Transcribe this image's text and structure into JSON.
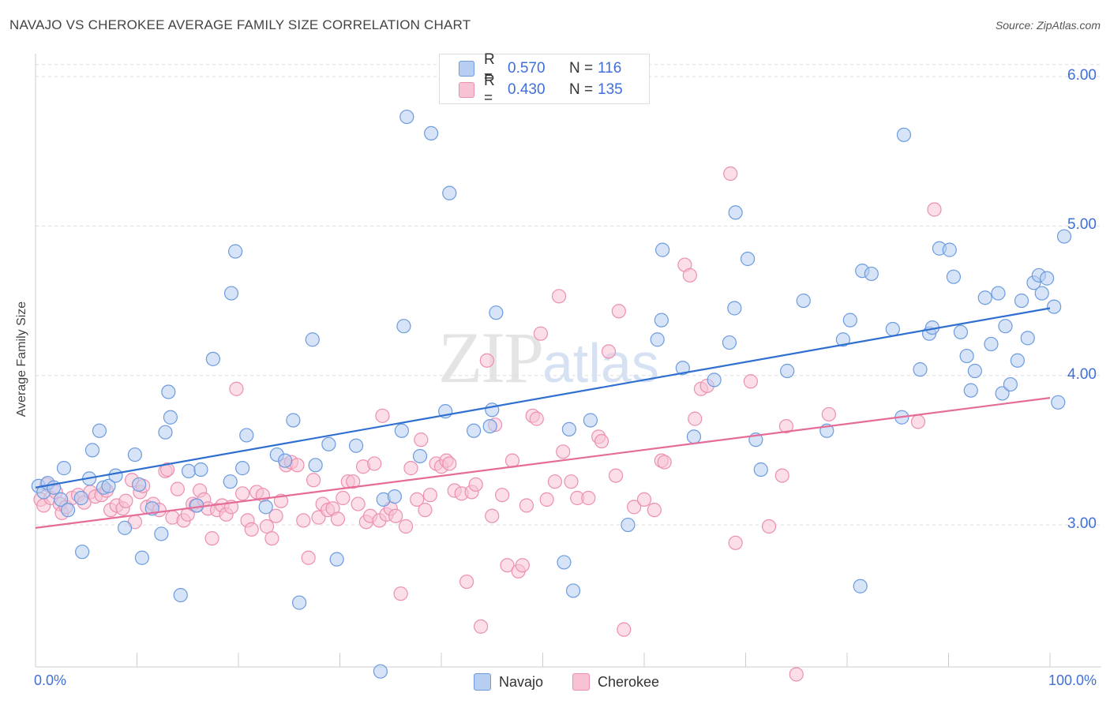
{
  "header": {
    "title": "NAVAJO VS CHEROKEE AVERAGE FAMILY SIZE CORRELATION CHART",
    "source": "Source: ZipAtlas.com"
  },
  "watermark": {
    "zip": "ZIP",
    "atlas": "atlas"
  },
  "colors": {
    "navajo_fill": "#b7cdf1",
    "navajo_stroke": "#6c9be0",
    "navajo_line": "#2f6fd0",
    "cherokee_fill": "#f7c3d4",
    "cherokee_stroke": "#ec8fb0",
    "cherokee_line": "#e56b98",
    "tick_text": "#3f6fd8",
    "grid": "#dddddd"
  },
  "legend_top": {
    "rows": [
      {
        "r_label": "R =",
        "r_value": "0.570",
        "n_label": "N =",
        "n_value": "116"
      },
      {
        "r_label": "R =",
        "r_value": "0.430",
        "n_label": "N =",
        "n_value": "135"
      }
    ]
  },
  "chart_data": {
    "type": "scatter",
    "title": "NAVAJO VS CHEROKEE AVERAGE FAMILY SIZE CORRELATION CHART",
    "xlabel": "",
    "ylabel": "Average Family Size",
    "xlim": [
      0,
      100
    ],
    "ylim": [
      2.05,
      6.1
    ],
    "x_tick_labels": [
      "0.0%",
      "100.0%"
    ],
    "y_ticks": [
      3.0,
      4.0,
      5.0,
      6.0
    ],
    "y_tick_labels": [
      "3.00",
      "4.00",
      "5.00",
      "6.00"
    ],
    "grid": true,
    "legend_position": "top-center",
    "series": [
      {
        "name": "Navajo",
        "R": 0.57,
        "N": 116,
        "trend": {
          "x": [
            0,
            100
          ],
          "y": [
            3.25,
            4.45
          ]
        },
        "points": [
          [
            0.3,
            3.26
          ],
          [
            0.8,
            3.22
          ],
          [
            1.2,
            3.28
          ],
          [
            1.8,
            3.25
          ],
          [
            2.5,
            3.17
          ],
          [
            2.8,
            3.38
          ],
          [
            3.2,
            3.1
          ],
          [
            4.5,
            3.18
          ],
          [
            4.6,
            2.82
          ],
          [
            5.3,
            3.31
          ],
          [
            5.6,
            3.5
          ],
          [
            6.3,
            3.63
          ],
          [
            6.7,
            3.25
          ],
          [
            7.2,
            3.26
          ],
          [
            7.9,
            3.33
          ],
          [
            8.8,
            2.98
          ],
          [
            9.8,
            3.47
          ],
          [
            10.2,
            3.27
          ],
          [
            10.5,
            2.78
          ],
          [
            11.5,
            3.11
          ],
          [
            12.4,
            2.94
          ],
          [
            12.8,
            3.62
          ],
          [
            13.1,
            3.89
          ],
          [
            13.3,
            3.72
          ],
          [
            14.3,
            2.53
          ],
          [
            15.1,
            3.36
          ],
          [
            15.9,
            3.13
          ],
          [
            16.3,
            3.37
          ],
          [
            17.5,
            4.11
          ],
          [
            19.2,
            3.29
          ],
          [
            19.3,
            4.55
          ],
          [
            19.7,
            4.83
          ],
          [
            20.4,
            3.38
          ],
          [
            20.8,
            3.6
          ],
          [
            22.7,
            3.12
          ],
          [
            23.8,
            3.47
          ],
          [
            24.6,
            3.43
          ],
          [
            25.4,
            3.7
          ],
          [
            26.0,
            2.48
          ],
          [
            27.3,
            4.24
          ],
          [
            27.6,
            3.4
          ],
          [
            28.9,
            3.54
          ],
          [
            29.7,
            2.77
          ],
          [
            31.6,
            3.53
          ],
          [
            34.0,
            2.02
          ],
          [
            34.3,
            3.17
          ],
          [
            35.4,
            3.19
          ],
          [
            36.1,
            3.63
          ],
          [
            36.3,
            4.33
          ],
          [
            36.6,
            5.73
          ],
          [
            37.9,
            3.46
          ],
          [
            39.0,
            5.62
          ],
          [
            40.4,
            3.76
          ],
          [
            40.8,
            5.22
          ],
          [
            43.2,
            3.63
          ],
          [
            44.8,
            3.66
          ],
          [
            45.0,
            3.77
          ],
          [
            45.4,
            4.42
          ],
          [
            52.1,
            2.75
          ],
          [
            52.6,
            3.64
          ],
          [
            53.0,
            2.56
          ],
          [
            54.7,
            3.7
          ],
          [
            58.4,
            3.0
          ],
          [
            61.3,
            4.24
          ],
          [
            61.7,
            4.37
          ],
          [
            61.8,
            4.84
          ],
          [
            63.8,
            4.05
          ],
          [
            64.9,
            3.59
          ],
          [
            66.9,
            3.97
          ],
          [
            68.4,
            4.22
          ],
          [
            68.9,
            4.45
          ],
          [
            69.0,
            5.09
          ],
          [
            70.2,
            4.78
          ],
          [
            71.0,
            3.57
          ],
          [
            71.5,
            3.37
          ],
          [
            74.1,
            4.03
          ],
          [
            75.7,
            4.5
          ],
          [
            78.0,
            3.63
          ],
          [
            79.6,
            4.24
          ],
          [
            80.3,
            4.37
          ],
          [
            81.5,
            4.7
          ],
          [
            82.4,
            4.68
          ],
          [
            81.3,
            2.59
          ],
          [
            84.5,
            4.31
          ],
          [
            85.4,
            3.72
          ],
          [
            85.6,
            5.61
          ],
          [
            87.2,
            4.04
          ],
          [
            88.1,
            4.28
          ],
          [
            88.4,
            4.32
          ],
          [
            89.1,
            4.85
          ],
          [
            90.1,
            4.84
          ],
          [
            90.5,
            4.66
          ],
          [
            91.2,
            4.29
          ],
          [
            91.8,
            4.13
          ],
          [
            92.2,
            3.9
          ],
          [
            92.6,
            4.03
          ],
          [
            93.6,
            4.52
          ],
          [
            94.2,
            4.21
          ],
          [
            94.9,
            4.55
          ],
          [
            95.3,
            3.88
          ],
          [
            95.6,
            4.33
          ],
          [
            96.1,
            3.94
          ],
          [
            96.8,
            4.1
          ],
          [
            97.2,
            4.5
          ],
          [
            97.8,
            4.25
          ],
          [
            98.4,
            4.62
          ],
          [
            98.9,
            4.67
          ],
          [
            99.2,
            4.55
          ],
          [
            99.7,
            4.65
          ],
          [
            100.4,
            4.46
          ],
          [
            100.8,
            3.82
          ],
          [
            101.4,
            4.93
          ]
        ]
      },
      {
        "name": "Cherokee",
        "R": 0.43,
        "N": 135,
        "trend": {
          "x": [
            0,
            100
          ],
          "y": [
            2.98,
            3.85
          ]
        },
        "points": [
          [
            0.5,
            3.17
          ],
          [
            0.8,
            3.13
          ],
          [
            1.1,
            3.27
          ],
          [
            1.5,
            3.18
          ],
          [
            2.0,
            3.22
          ],
          [
            2.4,
            3.14
          ],
          [
            2.6,
            3.08
          ],
          [
            3.0,
            3.12
          ],
          [
            3.6,
            3.18
          ],
          [
            4.2,
            3.2
          ],
          [
            4.8,
            3.15
          ],
          [
            5.4,
            3.22
          ],
          [
            5.9,
            3.19
          ],
          [
            6.5,
            3.2
          ],
          [
            7.0,
            3.23
          ],
          [
            7.4,
            3.1
          ],
          [
            8.0,
            3.13
          ],
          [
            8.6,
            3.11
          ],
          [
            8.9,
            3.16
          ],
          [
            9.5,
            3.3
          ],
          [
            9.8,
            3.02
          ],
          [
            10.3,
            3.22
          ],
          [
            10.6,
            3.26
          ],
          [
            11.0,
            3.12
          ],
          [
            11.6,
            3.14
          ],
          [
            12.2,
            3.1
          ],
          [
            12.8,
            3.36
          ],
          [
            13.0,
            3.37
          ],
          [
            13.5,
            3.05
          ],
          [
            14.0,
            3.24
          ],
          [
            14.6,
            3.03
          ],
          [
            15.0,
            3.07
          ],
          [
            15.5,
            3.14
          ],
          [
            15.8,
            3.13
          ],
          [
            16.2,
            3.23
          ],
          [
            16.6,
            3.17
          ],
          [
            17.0,
            3.11
          ],
          [
            17.4,
            2.91
          ],
          [
            17.9,
            3.1
          ],
          [
            18.4,
            3.13
          ],
          [
            18.8,
            3.07
          ],
          [
            19.3,
            3.12
          ],
          [
            19.8,
            3.91
          ],
          [
            20.4,
            3.21
          ],
          [
            20.9,
            3.03
          ],
          [
            21.3,
            2.97
          ],
          [
            21.8,
            3.22
          ],
          [
            22.4,
            3.2
          ],
          [
            22.8,
            2.99
          ],
          [
            23.3,
            2.91
          ],
          [
            23.7,
            3.06
          ],
          [
            24.2,
            3.16
          ],
          [
            24.7,
            3.4
          ],
          [
            25.2,
            3.42
          ],
          [
            25.8,
            3.4
          ],
          [
            26.4,
            3.03
          ],
          [
            26.9,
            2.78
          ],
          [
            27.4,
            3.3
          ],
          [
            27.9,
            3.05
          ],
          [
            28.3,
            3.14
          ],
          [
            28.8,
            3.1
          ],
          [
            29.3,
            3.11
          ],
          [
            29.8,
            3.04
          ],
          [
            30.3,
            3.18
          ],
          [
            30.8,
            3.29
          ],
          [
            31.3,
            3.29
          ],
          [
            31.8,
            3.14
          ],
          [
            32.3,
            3.39
          ],
          [
            32.6,
            3.02
          ],
          [
            33.0,
            3.06
          ],
          [
            33.4,
            3.41
          ],
          [
            33.9,
            3.03
          ],
          [
            34.2,
            3.73
          ],
          [
            34.6,
            3.07
          ],
          [
            35.0,
            3.11
          ],
          [
            35.5,
            3.06
          ],
          [
            36.0,
            2.54
          ],
          [
            36.5,
            2.99
          ],
          [
            37.0,
            3.38
          ],
          [
            37.6,
            3.17
          ],
          [
            38.0,
            3.57
          ],
          [
            38.4,
            3.1
          ],
          [
            38.9,
            3.2
          ],
          [
            39.5,
            3.41
          ],
          [
            40.0,
            3.39
          ],
          [
            40.5,
            3.43
          ],
          [
            40.8,
            3.41
          ],
          [
            41.3,
            3.23
          ],
          [
            42.0,
            3.21
          ],
          [
            42.5,
            2.62
          ],
          [
            43.0,
            3.22
          ],
          [
            43.4,
            3.27
          ],
          [
            43.9,
            2.32
          ],
          [
            44.5,
            4.1
          ],
          [
            45.0,
            3.06
          ],
          [
            45.3,
            3.67
          ],
          [
            46.0,
            3.2
          ],
          [
            46.5,
            2.73
          ],
          [
            47.0,
            3.43
          ],
          [
            47.6,
            2.69
          ],
          [
            48.0,
            2.73
          ],
          [
            48.4,
            3.13
          ],
          [
            49.0,
            3.73
          ],
          [
            49.4,
            3.71
          ],
          [
            49.8,
            4.28
          ],
          [
            50.4,
            3.17
          ],
          [
            51.2,
            3.29
          ],
          [
            51.6,
            4.53
          ],
          [
            52.0,
            3.49
          ],
          [
            52.8,
            3.29
          ],
          [
            53.4,
            3.18
          ],
          [
            54.5,
            3.18
          ],
          [
            55.5,
            3.59
          ],
          [
            55.8,
            3.56
          ],
          [
            56.5,
            4.16
          ],
          [
            57.2,
            3.33
          ],
          [
            57.5,
            4.43
          ],
          [
            58.0,
            2.3
          ],
          [
            59.0,
            3.12
          ],
          [
            60.0,
            3.17
          ],
          [
            61.0,
            3.1
          ],
          [
            61.7,
            3.43
          ],
          [
            62.0,
            3.42
          ],
          [
            64.0,
            4.74
          ],
          [
            64.5,
            4.67
          ],
          [
            65.0,
            3.71
          ],
          [
            65.6,
            3.91
          ],
          [
            66.2,
            3.93
          ],
          [
            68.5,
            5.35
          ],
          [
            69.0,
            2.88
          ],
          [
            70.5,
            3.96
          ],
          [
            72.3,
            2.99
          ],
          [
            73.6,
            3.33
          ],
          [
            74.0,
            3.66
          ],
          [
            75.0,
            2.0
          ],
          [
            78.2,
            3.74
          ],
          [
            87.0,
            3.69
          ],
          [
            88.6,
            5.11
          ]
        ]
      }
    ]
  },
  "legend_bottom": {
    "items": [
      {
        "label": "Navajo"
      },
      {
        "label": "Cherokee"
      }
    ]
  }
}
